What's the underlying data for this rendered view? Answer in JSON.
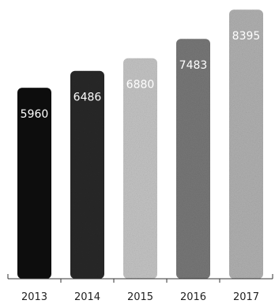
{
  "chart_data": {
    "type": "bar",
    "categories": [
      "2013",
      "2014",
      "2015",
      "2016",
      "2017"
    ],
    "values": [
      5960,
      6486,
      6880,
      7483,
      8395
    ],
    "data_labels": [
      "5960",
      "6486",
      "6880",
      "7483",
      "8395"
    ],
    "title": "",
    "xlabel": "",
    "ylabel": "",
    "ylim": [
      0,
      8400
    ],
    "grid": false,
    "legend": "none",
    "colors": [
      "#111111",
      "#2a2a2a",
      "#c8c8c8",
      "#7a7a7a",
      "#b4b4b4"
    ]
  }
}
